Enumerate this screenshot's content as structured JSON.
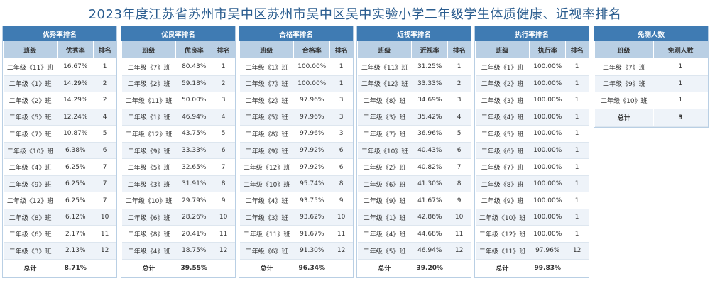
{
  "title": "2023年度江苏省苏州市吴中区苏州市吴中区吴中实验小学二年级学生体质健康、近视率排名",
  "panels": [
    {
      "heading": "优秀率排名",
      "columns": [
        "班级",
        "优秀率",
        "排名"
      ],
      "rows": [
        [
          "二年级《11》班",
          "16.67%",
          "1"
        ],
        [
          "二年级《1》班",
          "14.29%",
          "2"
        ],
        [
          "二年级《2》班",
          "14.29%",
          "2"
        ],
        [
          "二年级《5》班",
          "12.24%",
          "4"
        ],
        [
          "二年级《7》班",
          "10.87%",
          "5"
        ],
        [
          "二年级《10》班",
          "6.38%",
          "6"
        ],
        [
          "二年级《4》班",
          "6.25%",
          "7"
        ],
        [
          "二年级《9》班",
          "6.25%",
          "7"
        ],
        [
          "二年级《12》班",
          "6.25%",
          "7"
        ],
        [
          "二年级《8》班",
          "6.12%",
          "10"
        ],
        [
          "二年级《6》班",
          "2.17%",
          "11"
        ],
        [
          "二年级《3》班",
          "2.13%",
          "12"
        ]
      ],
      "total_label": "总计",
      "total_value": "8.71%"
    },
    {
      "heading": "优良率排名",
      "columns": [
        "班级",
        "优良率",
        "排名"
      ],
      "rows": [
        [
          "二年级《7》班",
          "80.43%",
          "1"
        ],
        [
          "二年级《2》班",
          "59.18%",
          "2"
        ],
        [
          "二年级《11》班",
          "50.00%",
          "3"
        ],
        [
          "二年级《1》班",
          "46.94%",
          "4"
        ],
        [
          "二年级《12》班",
          "43.75%",
          "5"
        ],
        [
          "二年级《9》班",
          "33.33%",
          "6"
        ],
        [
          "二年级《5》班",
          "32.65%",
          "7"
        ],
        [
          "二年级《3》班",
          "31.91%",
          "8"
        ],
        [
          "二年级《10》班",
          "29.79%",
          "9"
        ],
        [
          "二年级《6》班",
          "28.26%",
          "10"
        ],
        [
          "二年级《8》班",
          "20.41%",
          "11"
        ],
        [
          "二年级《4》班",
          "18.75%",
          "12"
        ]
      ],
      "total_label": "总计",
      "total_value": "39.55%"
    },
    {
      "heading": "合格率排名",
      "columns": [
        "班级",
        "合格率",
        "排名"
      ],
      "rows": [
        [
          "二年级《1》班",
          "100.00%",
          "1"
        ],
        [
          "二年级《7》班",
          "100.00%",
          "1"
        ],
        [
          "二年级《2》班",
          "97.96%",
          "3"
        ],
        [
          "二年级《5》班",
          "97.96%",
          "3"
        ],
        [
          "二年级《8》班",
          "97.96%",
          "3"
        ],
        [
          "二年级《9》班",
          "97.92%",
          "6"
        ],
        [
          "二年级《12》班",
          "97.92%",
          "6"
        ],
        [
          "二年级《10》班",
          "95.74%",
          "8"
        ],
        [
          "二年级《4》班",
          "93.75%",
          "9"
        ],
        [
          "二年级《3》班",
          "93.62%",
          "10"
        ],
        [
          "二年级《11》班",
          "91.67%",
          "11"
        ],
        [
          "二年级《6》班",
          "91.30%",
          "12"
        ]
      ],
      "total_label": "总计",
      "total_value": "96.34%"
    },
    {
      "heading": "近视率排名",
      "columns": [
        "班级",
        "近视率",
        "排名"
      ],
      "rows": [
        [
          "二年级《11》班",
          "31.25%",
          "1"
        ],
        [
          "二年级《12》班",
          "33.33%",
          "2"
        ],
        [
          "二年级《8》班",
          "34.69%",
          "3"
        ],
        [
          "二年级《3》班",
          "35.42%",
          "4"
        ],
        [
          "二年级《7》班",
          "36.96%",
          "5"
        ],
        [
          "二年级《10》班",
          "40.43%",
          "6"
        ],
        [
          "二年级《2》班",
          "40.82%",
          "7"
        ],
        [
          "二年级《6》班",
          "41.30%",
          "8"
        ],
        [
          "二年级《9》班",
          "41.67%",
          "9"
        ],
        [
          "二年级《1》班",
          "42.86%",
          "10"
        ],
        [
          "二年级《4》班",
          "44.68%",
          "11"
        ],
        [
          "二年级《5》班",
          "46.94%",
          "12"
        ]
      ],
      "total_label": "总计",
      "total_value": "39.20%"
    },
    {
      "heading": "执行率排名",
      "columns": [
        "班级",
        "执行率",
        "排名"
      ],
      "rows": [
        [
          "二年级《1》班",
          "100.00%",
          "1"
        ],
        [
          "二年级《2》班",
          "100.00%",
          "1"
        ],
        [
          "二年级《3》班",
          "100.00%",
          "1"
        ],
        [
          "二年级《4》班",
          "100.00%",
          "1"
        ],
        [
          "二年级《5》班",
          "100.00%",
          "1"
        ],
        [
          "二年级《6》班",
          "100.00%",
          "1"
        ],
        [
          "二年级《7》班",
          "100.00%",
          "1"
        ],
        [
          "二年级《8》班",
          "100.00%",
          "1"
        ],
        [
          "二年级《9》班",
          "100.00%",
          "1"
        ],
        [
          "二年级《10》班",
          "100.00%",
          "1"
        ],
        [
          "二年级《12》班",
          "100.00%",
          "1"
        ],
        [
          "二年级《11》班",
          "97.96%",
          "12"
        ]
      ],
      "total_label": "总计",
      "total_value": "99.83%"
    }
  ],
  "exempt": {
    "heading": "免测人数",
    "columns": [
      "班级",
      "免测人数"
    ],
    "rows": [
      [
        "二年级《7》班",
        "1"
      ],
      [
        "二年级《9》班",
        "1"
      ],
      [
        "二年级《10》班",
        "1"
      ]
    ],
    "total_label": "总计",
    "total_value": "3"
  }
}
